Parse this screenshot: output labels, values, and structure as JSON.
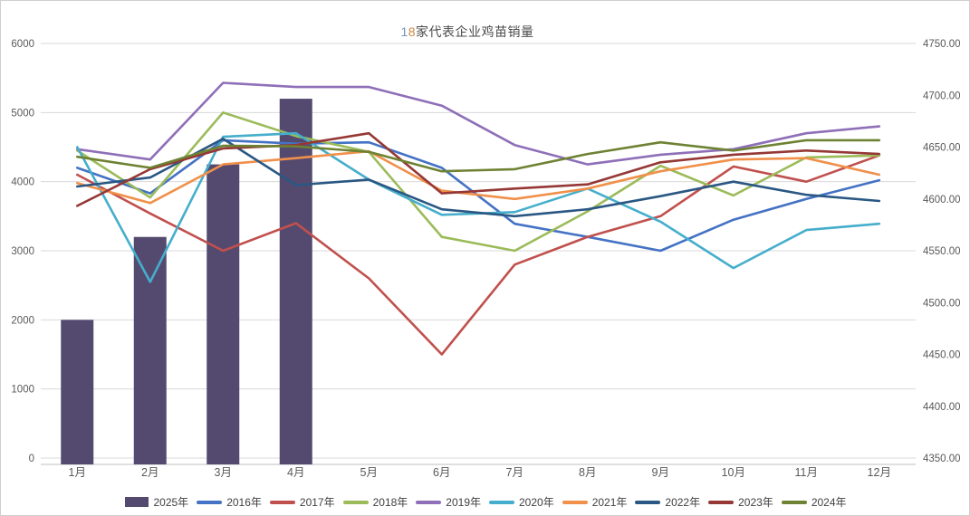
{
  "title": {
    "num1": "1",
    "num2": "8",
    "text": "家代表企业鸡苗销量",
    "full": "18家代表企业鸡苗销量"
  },
  "chart_data": {
    "type": "combo-bar-line",
    "title": "18家代表企业鸡苗销量",
    "categories": [
      "1月",
      "2月",
      "3月",
      "4月",
      "5月",
      "6月",
      "7月",
      "8月",
      "9月",
      "10月",
      "11月",
      "12月"
    ],
    "left_axis": {
      "min": 0,
      "max": 6000,
      "step": 1000,
      "ticks": [
        "0",
        "1000",
        "2000",
        "3000",
        "4000",
        "5000",
        "6000"
      ]
    },
    "right_axis": {
      "min": 4350,
      "max": 4750,
      "step": 50,
      "ticks": [
        "4350.00",
        "4400.00",
        "4450.00",
        "4500.00",
        "4550.00",
        "4600.00",
        "4650.00",
        "4700.00",
        "4750.00"
      ]
    },
    "grid": "horizontal-only",
    "legend_position": "bottom",
    "bar_series": [
      {
        "name": "2025年",
        "color": "#544a70",
        "axis": "left",
        "values": [
          2000,
          3200,
          4250,
          5200,
          null,
          null,
          null,
          null,
          null,
          null,
          null,
          null
        ]
      }
    ],
    "line_series": [
      {
        "name": "2016年",
        "color": "#4472c4",
        "axis": "left",
        "values": [
          4200,
          3830,
          4600,
          4550,
          4570,
          4200,
          3390,
          3200,
          3000,
          3450,
          3750,
          4020
        ]
      },
      {
        "name": "2017年",
        "color": "#c0504d",
        "axis": "left",
        "values": [
          4100,
          3540,
          3000,
          3400,
          2600,
          1500,
          2800,
          3200,
          3500,
          4220,
          4000,
          4380
        ]
      },
      {
        "name": "2018年",
        "color": "#9bbb59",
        "axis": "left",
        "values": [
          4450,
          3770,
          5000,
          4660,
          4430,
          3200,
          3000,
          3570,
          4230,
          3800,
          4350,
          4380
        ]
      },
      {
        "name": "2019年",
        "color": "#8e6fb8",
        "axis": "left",
        "values": [
          4470,
          4320,
          5430,
          5370,
          5370,
          5100,
          4530,
          4250,
          4390,
          4470,
          4700,
          4800
        ]
      },
      {
        "name": "2020年",
        "color": "#45aecc",
        "axis": "left",
        "values": [
          4500,
          2550,
          4650,
          4700,
          4030,
          3520,
          3560,
          3900,
          3420,
          2750,
          3300,
          3390
        ]
      },
      {
        "name": "2021年",
        "color": "#f0904a",
        "axis": "left",
        "values": [
          3980,
          3690,
          4250,
          4340,
          4440,
          3870,
          3750,
          3900,
          4150,
          4320,
          4340,
          4100
        ]
      },
      {
        "name": "2022年",
        "color": "#2a5783",
        "axis": "left",
        "values": [
          3930,
          4060,
          4620,
          3950,
          4030,
          3600,
          3500,
          3600,
          3790,
          4000,
          3810,
          3720
        ]
      },
      {
        "name": "2023年",
        "color": "#953735",
        "axis": "left",
        "values": [
          3650,
          4180,
          4480,
          4530,
          4700,
          3830,
          3900,
          3960,
          4280,
          4390,
          4450,
          4400
        ]
      },
      {
        "name": "2024年",
        "color": "#6e8233",
        "axis": "left",
        "values": [
          4360,
          4200,
          4520,
          4510,
          4430,
          4150,
          4180,
          4400,
          4570,
          4450,
          4600,
          4600
        ]
      }
    ],
    "style": {
      "gridline_color": "#d9d9d9",
      "axis_line_color": "#bfbfbf",
      "tick_label_color": "#595959"
    }
  }
}
